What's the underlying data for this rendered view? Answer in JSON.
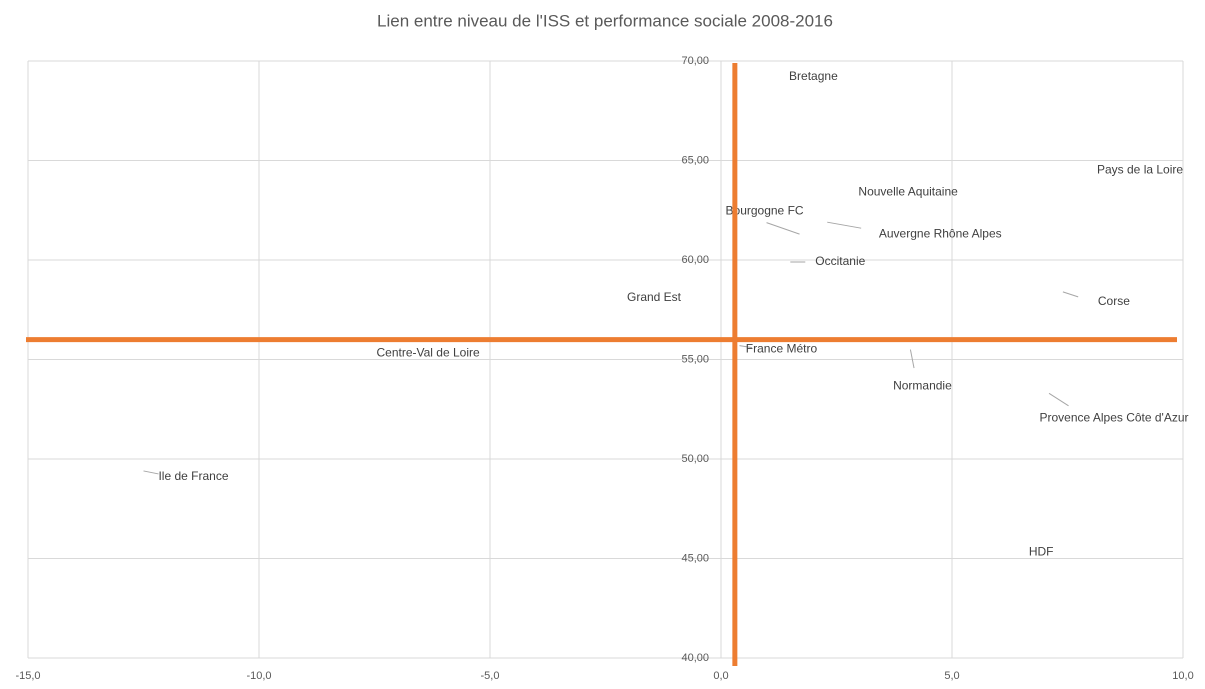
{
  "chart_data": {
    "type": "scatter",
    "title": "Lien entre niveau de l'ISS et performance sociale 2008-2016",
    "points": [
      {
        "label": "Bretagne",
        "x": 2.0,
        "y": 69.2
      },
      {
        "label": "Pays de la Loire",
        "x": 9.07,
        "y": 64.5
      },
      {
        "label": "Nouvelle Aquitaine",
        "x": 4.05,
        "y": 63.4
      },
      {
        "label": "Bourgogne FC",
        "x": 1.7,
        "y": 61.3
      },
      {
        "label": "Auvergne Rhône Alpes",
        "x": 2.3,
        "y": 61.9
      },
      {
        "label": "Occitanie",
        "x": 1.5,
        "y": 59.9
      },
      {
        "label": "Corse",
        "x": 7.4,
        "y": 58.4
      },
      {
        "label": "Grand Est",
        "x": -1.45,
        "y": 58.1
      },
      {
        "label": "France Métro",
        "x": 0.4,
        "y": 55.7
      },
      {
        "label": "Centre-Val de Loire",
        "x": -6.34,
        "y": 55.3
      },
      {
        "label": "Normandie",
        "x": 4.1,
        "y": 55.5
      },
      {
        "label": "Provence Alpes Côte d'Azur",
        "x": 7.1,
        "y": 53.3
      },
      {
        "label": "Ile de France",
        "x": -12.5,
        "y": 49.4
      },
      {
        "label": "HDF",
        "x": 6.93,
        "y": 45.3
      }
    ],
    "reference_lines": {
      "x": 0.3,
      "y": 56.0,
      "color": "#ed7d31"
    },
    "xlim": [
      -15,
      10
    ],
    "xticks": [
      {
        "value": -15,
        "label": "-15,0"
      },
      {
        "value": -10,
        "label": "-10,0"
      },
      {
        "value": -5,
        "label": "-5,0"
      },
      {
        "value": 0,
        "label": "0,0"
      },
      {
        "value": 5,
        "label": "5,0"
      },
      {
        "value": 10,
        "label": "10,0"
      }
    ],
    "ylim": [
      40,
      70
    ],
    "yticks": [
      {
        "value": 40,
        "label": "40,00"
      },
      {
        "value": 45,
        "label": "45,00"
      },
      {
        "value": 50,
        "label": "50,00"
      },
      {
        "value": 55,
        "label": "55,00"
      },
      {
        "value": 60,
        "label": "60,00"
      },
      {
        "value": 65,
        "label": "65,00"
      },
      {
        "value": 70,
        "label": "70,00"
      }
    ],
    "grid": true
  }
}
